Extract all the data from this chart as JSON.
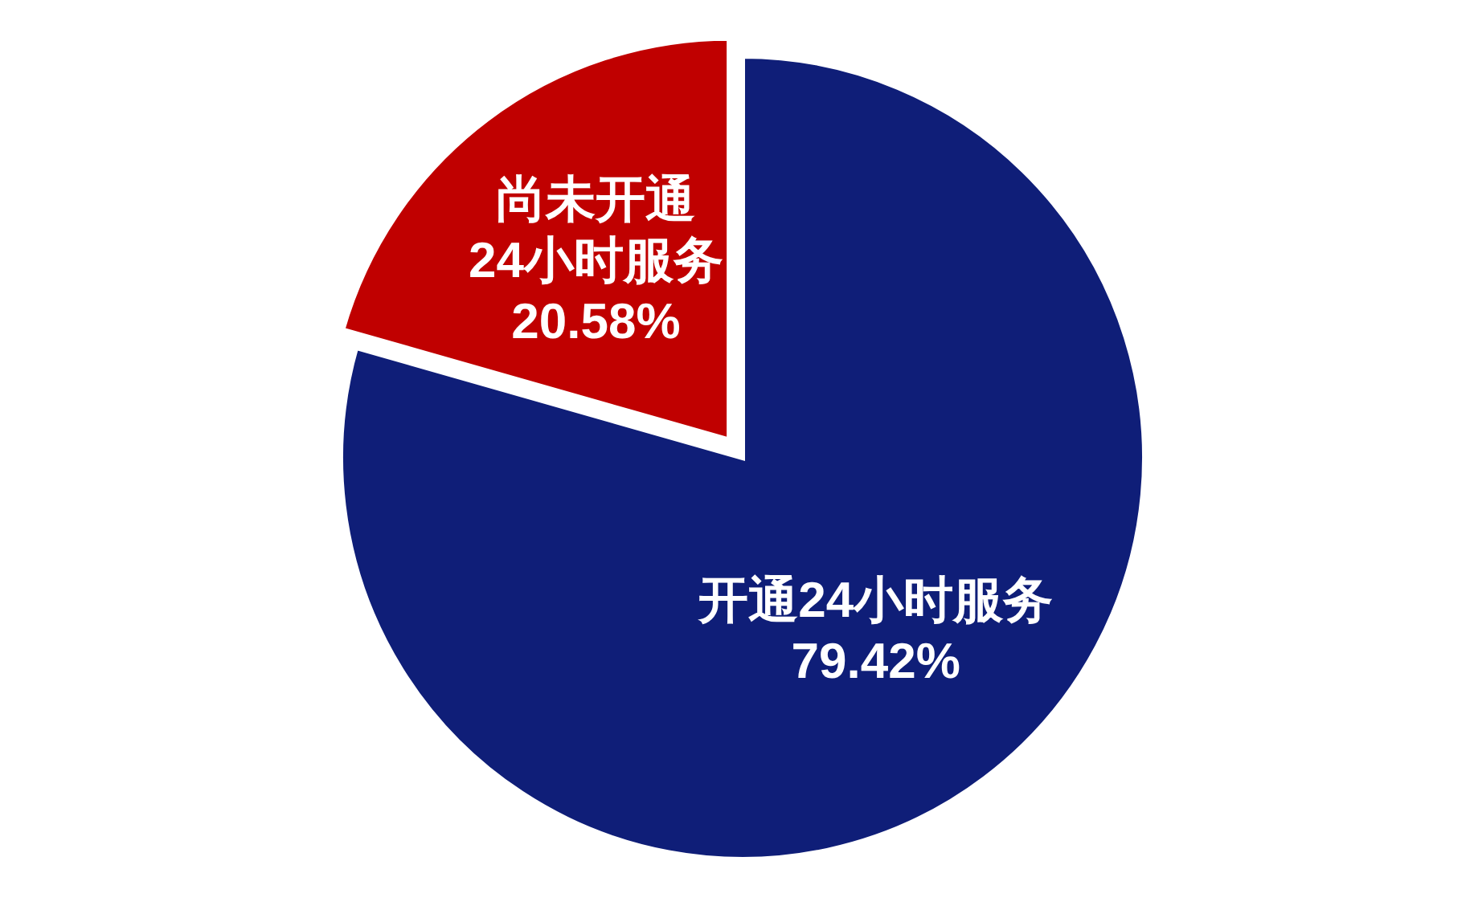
{
  "chart_data": {
    "type": "pie",
    "categories": [
      "开通24小时服务",
      "尚未开通\n24小时服务"
    ],
    "values": [
      79.42,
      20.58
    ],
    "colors": [
      "#0f1e78",
      "#c00000"
    ],
    "value_labels": [
      "79.42%",
      "20.58%"
    ]
  }
}
